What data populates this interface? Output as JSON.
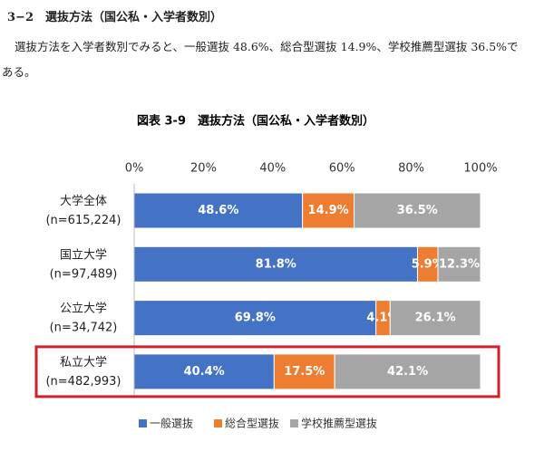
{
  "section_heading": "3−2　選抜方法（国公私・入学者数別）",
  "paragraph": "選抜方法を入学者数別でみると、一般選抜 48.6%、総合型選抜 14.9%、学校推薦型選抜 36.5%である。",
  "chart_data": {
    "type": "stacked_barh",
    "title": "図表 3-9　選抜方法（国公私・入学者数別）",
    "categories": [
      "大学全体",
      "国立大学",
      "公立大学",
      "私立大学"
    ],
    "category_notes": [
      "(n=615,224)",
      "(n=97,489)",
      "(n=34,742)",
      "(n=482,993)"
    ],
    "series": [
      {
        "name": "一般選抜",
        "color": "#4472c4",
        "values": [
          48.6,
          81.8,
          69.8,
          40.4
        ],
        "value_labels": [
          "48.6%",
          "81.8%",
          "69.8%",
          "40.4%"
        ]
      },
      {
        "name": "総合型選抜",
        "color": "#ed7d31",
        "values": [
          14.9,
          5.9,
          4.1,
          17.5
        ],
        "value_labels": [
          "14.9%",
          "5.9%",
          "4.1%",
          "17.5%"
        ]
      },
      {
        "name": "学校推薦型選抜",
        "color": "#a5a5a5",
        "values": [
          36.5,
          12.3,
          26.1,
          42.1
        ],
        "value_labels": [
          "36.5%",
          "12.3%",
          "26.1%",
          "42.1%"
        ]
      }
    ],
    "xlim": [
      0,
      100
    ],
    "xticks": [
      {
        "value": 0,
        "label": "0%"
      },
      {
        "value": 20,
        "label": "20%"
      },
      {
        "value": 40,
        "label": "40%"
      },
      {
        "value": 60,
        "label": "60%"
      },
      {
        "value": 80,
        "label": "80%"
      },
      {
        "value": 100,
        "label": "100%"
      }
    ],
    "highlight_category": 3,
    "highlight_color": "#d0202a",
    "legend": "bottom"
  }
}
